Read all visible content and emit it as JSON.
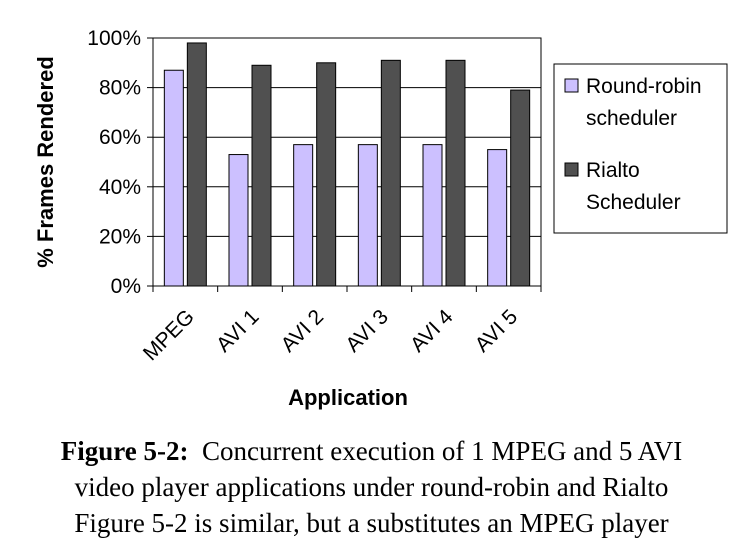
{
  "chart_data": {
    "type": "bar",
    "categories": [
      "MPEG",
      "AVI 1",
      "AVI 2",
      "AVI 3",
      "AVI 4",
      "AVI 5"
    ],
    "series": [
      {
        "name": "Round-robin scheduler",
        "legend_lines": [
          "Round-robin",
          "scheduler"
        ],
        "color": "#ccc0ff",
        "values": [
          87,
          53,
          57,
          57,
          57,
          55
        ]
      },
      {
        "name": "Rialto Scheduler",
        "legend_lines": [
          "Rialto",
          "Scheduler"
        ],
        "color": "#505050",
        "values": [
          98,
          89,
          90,
          91,
          91,
          79
        ]
      }
    ],
    "ylabel": "% Frames Rendered",
    "xlabel": "Application",
    "ylim": [
      0,
      100
    ],
    "yticks": [
      "0%",
      "20%",
      "40%",
      "60%",
      "80%",
      "100%"
    ],
    "grid": true,
    "legend": "right"
  },
  "caption": {
    "label": "Figure 5-2:",
    "line1": "Concurrent execution of 1 MPEG and 5 AVI",
    "line2": "video player applications under round-robin and Rialto",
    "line3": "Figure 5-2 is similar, but a substitutes an MPEG player"
  }
}
